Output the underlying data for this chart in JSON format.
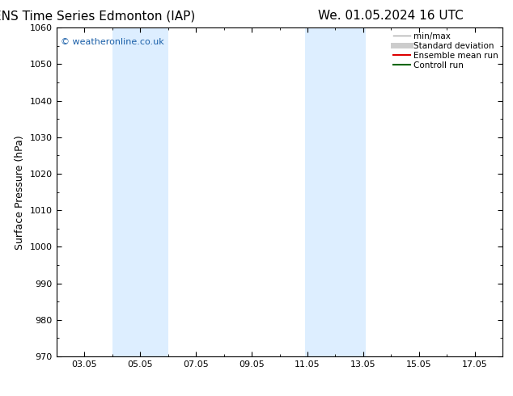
{
  "title_left": "ENS Time Series Edmonton (IAP)",
  "title_right": "We. 01.05.2024 16 UTC",
  "ylabel": "Surface Pressure (hPa)",
  "xlim": [
    2.0,
    18.0
  ],
  "ylim": [
    970,
    1060
  ],
  "yticks": [
    970,
    980,
    990,
    1000,
    1010,
    1020,
    1030,
    1040,
    1050,
    1060
  ],
  "xtick_labels": [
    "03.05",
    "05.05",
    "07.05",
    "09.05",
    "11.05",
    "13.05",
    "15.05",
    "17.05"
  ],
  "xtick_positions": [
    3,
    5,
    7,
    9,
    11,
    13,
    15,
    17
  ],
  "watermark": "© weatheronline.co.uk",
  "watermark_color": "#1a5fa8",
  "bg_color": "#ffffff",
  "plot_bg_color": "#ffffff",
  "shaded_bands": [
    {
      "x_start": 4.0,
      "x_end": 6.0
    },
    {
      "x_start": 10.9,
      "x_end": 13.1
    }
  ],
  "band_color": "#ddeeff",
  "legend_entries": [
    {
      "label": "min/max",
      "color": "#aaaaaa",
      "lw": 1.0
    },
    {
      "label": "Standard deviation",
      "color": "#cccccc",
      "lw": 5
    },
    {
      "label": "Ensemble mean run",
      "color": "#dd0000",
      "lw": 1.5
    },
    {
      "label": "Controll run",
      "color": "#006600",
      "lw": 1.5
    }
  ],
  "title_fontsize": 11,
  "tick_fontsize": 8,
  "ylabel_fontsize": 9,
  "watermark_fontsize": 8,
  "legend_fontsize": 7.5
}
